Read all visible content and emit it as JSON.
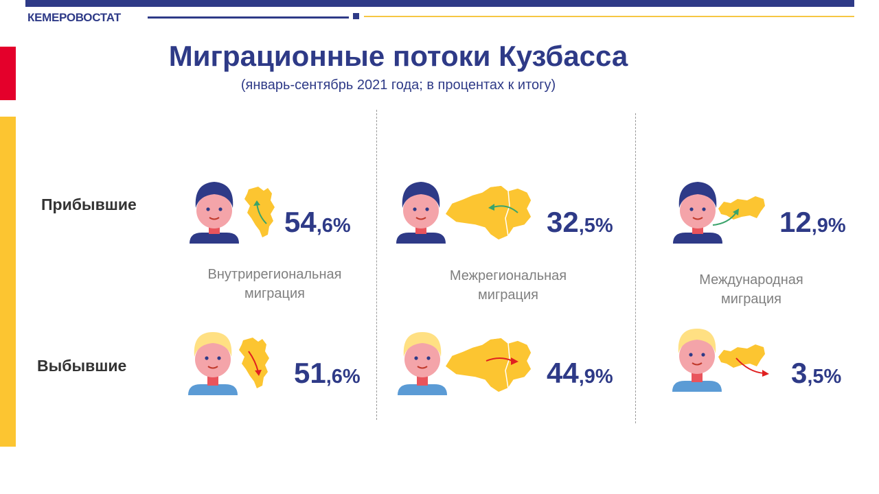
{
  "header": {
    "brand": "КЕМЕРОВОСТАТ"
  },
  "title": "Миграционные потоки Кузбасса",
  "subtitle": "(январь-сентябрь 2021 года; в процентах к итогу)",
  "rows": {
    "arrived": "Прибывшие",
    "departed": "Выбывшие"
  },
  "columns": [
    {
      "label_line1": "Внутрирегиональная",
      "label_line2": "миграция",
      "arrived_int": "54",
      "arrived_frac": ",6%",
      "departed_int": "51",
      "departed_frac": ",6%"
    },
    {
      "label_line1": "Межрегиональная",
      "label_line2": "миграция",
      "arrived_int": "32",
      "arrived_frac": ",5%",
      "departed_int": "44",
      "departed_frac": ",9%"
    },
    {
      "label_line1": "Международная",
      "label_line2": "миграция",
      "arrived_int": "12",
      "arrived_frac": ",9%",
      "departed_int": "3",
      "departed_frac": ",5%"
    }
  ],
  "colors": {
    "primary": "#2e3a87",
    "accent_yellow": "#fcc531",
    "accent_red": "#e4002b",
    "arrow_in": "#3aa36b",
    "arrow_out": "#e02020",
    "map": "#fcc531"
  },
  "icons": [
    "person-dark-hair-icon",
    "person-blond-icon",
    "kuzbass-map-icon",
    "siberia-map-icon",
    "russia-map-icon",
    "arrow-icon"
  ]
}
